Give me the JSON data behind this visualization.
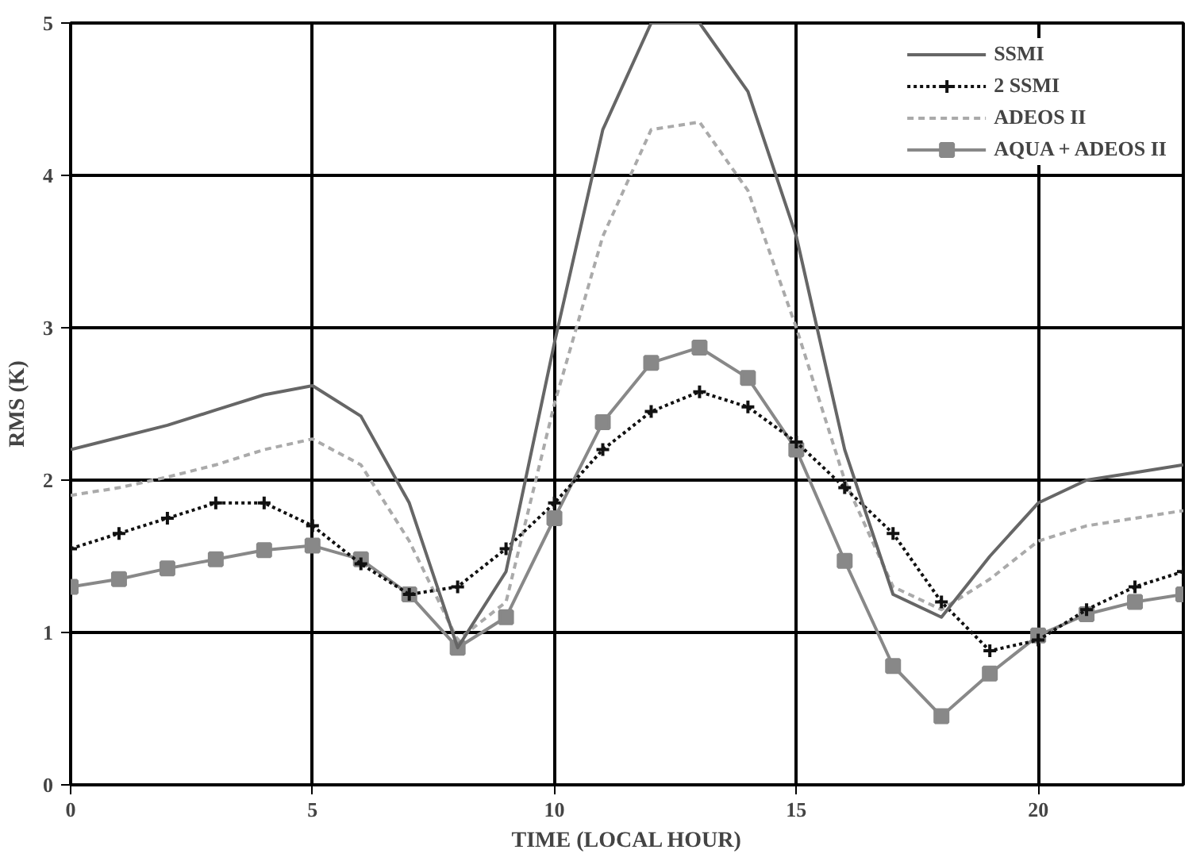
{
  "chart_data": {
    "type": "line",
    "xlabel": "TIME (LOCAL HOUR)",
    "ylabel": "RMS (K)",
    "x": [
      0,
      1,
      2,
      3,
      4,
      5,
      6,
      7,
      8,
      9,
      10,
      11,
      12,
      13,
      14,
      15,
      16,
      17,
      18,
      19,
      20,
      21,
      22,
      23
    ],
    "xlim": [
      0,
      23
    ],
    "ylim": [
      0,
      5
    ],
    "xticks": [
      0,
      5,
      10,
      15,
      20
    ],
    "yticks": [
      0,
      1,
      2,
      3,
      4,
      5
    ],
    "grid": true,
    "legend": "top right",
    "series": [
      {
        "name": "SSMI",
        "color": "#666666",
        "line_style": "solid",
        "marker": "none",
        "values": [
          2.2,
          2.28,
          2.36,
          2.46,
          2.56,
          2.62,
          2.42,
          1.85,
          0.9,
          1.4,
          2.9,
          4.3,
          5.0,
          5.0,
          4.55,
          3.6,
          2.2,
          1.25,
          1.1,
          1.5,
          1.85,
          2.0,
          2.05,
          2.1
        ]
      },
      {
        "name": "2 SSMI",
        "color": "#111111",
        "line_style": "dotted",
        "marker": "cross",
        "values": [
          1.55,
          1.65,
          1.75,
          1.85,
          1.85,
          1.7,
          1.45,
          1.25,
          1.3,
          1.55,
          1.85,
          2.2,
          2.45,
          2.58,
          2.48,
          2.25,
          1.95,
          1.65,
          1.2,
          0.88,
          0.95,
          1.15,
          1.3,
          1.4
        ]
      },
      {
        "name": "ADEOS II",
        "color": "#aaaaaa",
        "line_style": "dashed",
        "marker": "none",
        "values": [
          1.9,
          1.95,
          2.02,
          2.1,
          2.2,
          2.27,
          2.1,
          1.6,
          0.95,
          1.2,
          2.5,
          3.6,
          4.3,
          4.35,
          3.9,
          3.0,
          2.0,
          1.3,
          1.15,
          1.35,
          1.6,
          1.7,
          1.75,
          1.8
        ]
      },
      {
        "name": "AQUA + ADEOS II",
        "color": "#888888",
        "line_style": "solid",
        "marker": "square",
        "values": [
          1.3,
          1.35,
          1.42,
          1.48,
          1.54,
          1.57,
          1.48,
          1.25,
          0.9,
          1.1,
          1.75,
          2.38,
          2.77,
          2.87,
          2.67,
          2.2,
          1.47,
          0.78,
          0.45,
          0.73,
          0.98,
          1.12,
          1.2,
          1.25
        ]
      }
    ]
  }
}
